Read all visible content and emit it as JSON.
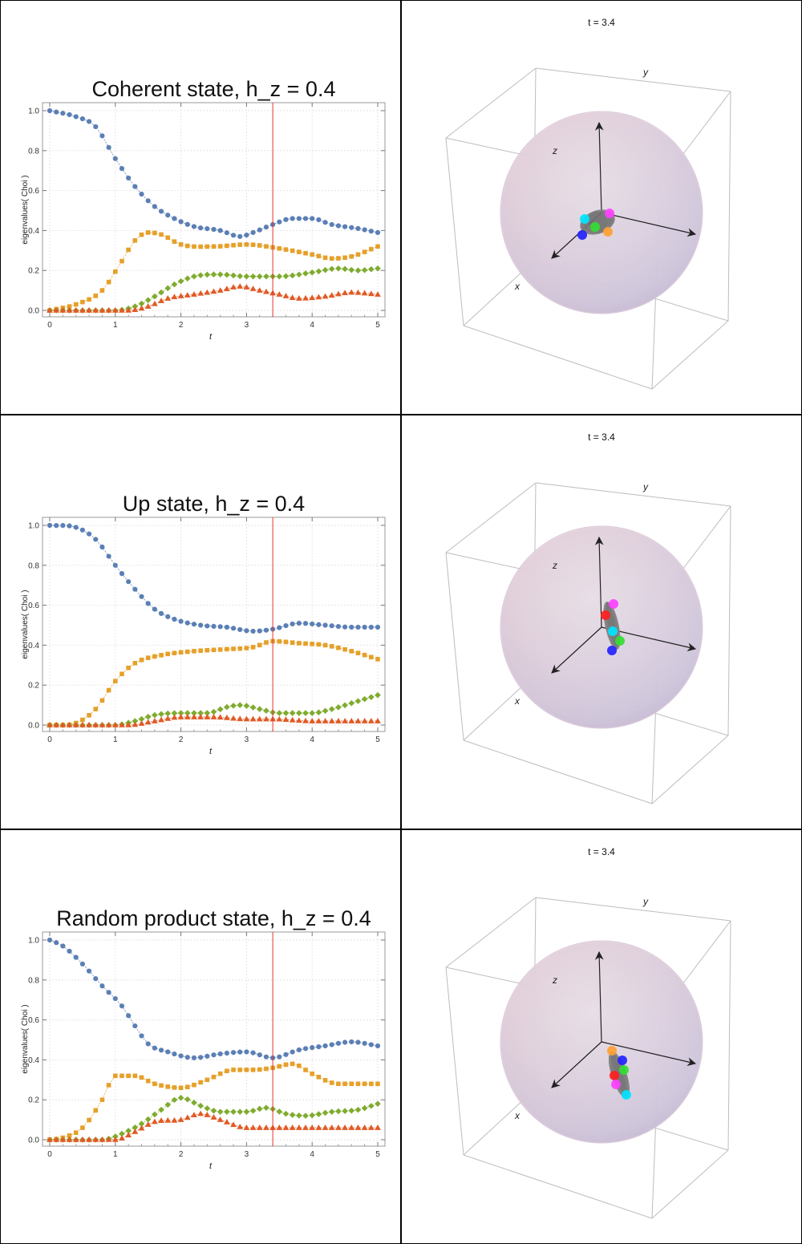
{
  "chart_data": [
    {
      "type": "scatter",
      "title": "Coherent state, h_z = 0.4",
      "xlabel": "t",
      "ylabel": "eigenvalues( Choi )",
      "xlim": [
        0,
        5
      ],
      "ylim": [
        0,
        1.0
      ],
      "xticks": [
        "0",
        "1",
        "2",
        "3",
        "4",
        "5"
      ],
      "yticks": [
        "0.0",
        "0.2",
        "0.4",
        "0.6",
        "0.8",
        "1.0"
      ],
      "marker_t": 3.4,
      "grid": true,
      "keypoints": true,
      "series": [
        {
          "color": "#5b7fb5",
          "marker": "circle",
          "points": [
            [
              0,
              1.0
            ],
            [
              0.4,
              0.97
            ],
            [
              0.7,
              0.92
            ],
            [
              1.0,
              0.76
            ],
            [
              1.3,
              0.62
            ],
            [
              1.6,
              0.52
            ],
            [
              1.9,
              0.46
            ],
            [
              2.2,
              0.42
            ],
            [
              2.6,
              0.4
            ],
            [
              2.9,
              0.37
            ],
            [
              3.1,
              0.39
            ],
            [
              3.4,
              0.43
            ],
            [
              3.7,
              0.46
            ],
            [
              4.0,
              0.46
            ],
            [
              4.3,
              0.43
            ],
            [
              4.7,
              0.41
            ],
            [
              5.0,
              0.39
            ]
          ]
        },
        {
          "color": "#e5a02a",
          "marker": "square",
          "points": [
            [
              0,
              0.0
            ],
            [
              0.4,
              0.03
            ],
            [
              0.8,
              0.1
            ],
            [
              1.05,
              0.22
            ],
            [
              1.3,
              0.35
            ],
            [
              1.5,
              0.39
            ],
            [
              1.7,
              0.38
            ],
            [
              2.0,
              0.33
            ],
            [
              2.5,
              0.32
            ],
            [
              3.0,
              0.33
            ],
            [
              3.5,
              0.31
            ],
            [
              4.0,
              0.28
            ],
            [
              4.3,
              0.26
            ],
            [
              4.6,
              0.27
            ],
            [
              5.0,
              0.32
            ]
          ]
        },
        {
          "color": "#7fab2e",
          "marker": "diamond",
          "points": [
            [
              0,
              0.0
            ],
            [
              1.0,
              0.0
            ],
            [
              1.3,
              0.02
            ],
            [
              1.6,
              0.07
            ],
            [
              1.9,
              0.13
            ],
            [
              2.2,
              0.17
            ],
            [
              2.6,
              0.18
            ],
            [
              3.0,
              0.17
            ],
            [
              3.5,
              0.17
            ],
            [
              4.0,
              0.19
            ],
            [
              4.4,
              0.21
            ],
            [
              4.7,
              0.2
            ],
            [
              5.0,
              0.21
            ]
          ]
        },
        {
          "color": "#e05a25",
          "marker": "triangle",
          "points": [
            [
              0,
              0.0
            ],
            [
              1.2,
              0.0
            ],
            [
              1.5,
              0.02
            ],
            [
              1.8,
              0.06
            ],
            [
              2.2,
              0.08
            ],
            [
              2.6,
              0.1
            ],
            [
              2.9,
              0.12
            ],
            [
              3.2,
              0.1
            ],
            [
              3.5,
              0.08
            ],
            [
              3.8,
              0.06
            ],
            [
              4.2,
              0.07
            ],
            [
              4.6,
              0.09
            ],
            [
              5.0,
              0.08
            ]
          ]
        }
      ]
    },
    {
      "type": "scatter",
      "title": "Up state, h_z = 0.4",
      "xlabel": "t",
      "ylabel": "eigenvalues( Choi )",
      "xlim": [
        0,
        5
      ],
      "ylim": [
        0,
        1.0
      ],
      "xticks": [
        "0",
        "1",
        "2",
        "3",
        "4",
        "5"
      ],
      "yticks": [
        "0.0",
        "0.2",
        "0.4",
        "0.6",
        "0.8",
        "1.0"
      ],
      "marker_t": 3.4,
      "grid": true,
      "keypoints": true,
      "series": [
        {
          "color": "#5b7fb5",
          "marker": "circle",
          "points": [
            [
              0,
              1.0
            ],
            [
              0.4,
              0.99
            ],
            [
              0.7,
              0.93
            ],
            [
              1.0,
              0.8
            ],
            [
              1.3,
              0.68
            ],
            [
              1.6,
              0.58
            ],
            [
              1.9,
              0.53
            ],
            [
              2.3,
              0.5
            ],
            [
              2.7,
              0.49
            ],
            [
              3.1,
              0.47
            ],
            [
              3.4,
              0.48
            ],
            [
              3.8,
              0.51
            ],
            [
              4.2,
              0.5
            ],
            [
              4.6,
              0.49
            ],
            [
              5.0,
              0.49
            ]
          ]
        },
        {
          "color": "#e5a02a",
          "marker": "square",
          "points": [
            [
              0,
              0.0
            ],
            [
              0.4,
              0.01
            ],
            [
              0.7,
              0.08
            ],
            [
              1.0,
              0.22
            ],
            [
              1.3,
              0.31
            ],
            [
              1.7,
              0.35
            ],
            [
              2.2,
              0.37
            ],
            [
              2.7,
              0.38
            ],
            [
              3.1,
              0.39
            ],
            [
              3.4,
              0.42
            ],
            [
              3.8,
              0.41
            ],
            [
              4.2,
              0.4
            ],
            [
              4.6,
              0.37
            ],
            [
              5.0,
              0.33
            ]
          ]
        },
        {
          "color": "#7fab2e",
          "marker": "diamond",
          "points": [
            [
              0,
              0.0
            ],
            [
              1.0,
              0.0
            ],
            [
              1.3,
              0.02
            ],
            [
              1.6,
              0.05
            ],
            [
              2.0,
              0.06
            ],
            [
              2.4,
              0.06
            ],
            [
              2.7,
              0.09
            ],
            [
              2.9,
              0.1
            ],
            [
              3.2,
              0.08
            ],
            [
              3.5,
              0.06
            ],
            [
              4.0,
              0.06
            ],
            [
              4.3,
              0.08
            ],
            [
              4.7,
              0.12
            ],
            [
              5.0,
              0.15
            ]
          ]
        },
        {
          "color": "#e05a25",
          "marker": "triangle",
          "points": [
            [
              0,
              0.0
            ],
            [
              1.2,
              0.0
            ],
            [
              1.6,
              0.02
            ],
            [
              2.0,
              0.04
            ],
            [
              2.5,
              0.04
            ],
            [
              3.0,
              0.03
            ],
            [
              3.4,
              0.03
            ],
            [
              4.0,
              0.02
            ],
            [
              4.5,
              0.02
            ],
            [
              5.0,
              0.02
            ]
          ]
        }
      ]
    },
    {
      "type": "scatter",
      "title": "Random product state, h_z = 0.4",
      "xlabel": "t",
      "ylabel": "eigenvalues( Choi )",
      "xlim": [
        0,
        5
      ],
      "ylim": [
        0,
        1.0
      ],
      "xticks": [
        "0",
        "1",
        "2",
        "3",
        "4",
        "5"
      ],
      "yticks": [
        "0.0",
        "0.2",
        "0.4",
        "0.6",
        "0.8",
        "1.0"
      ],
      "marker_t": 3.4,
      "grid": true,
      "keypoints": true,
      "series": [
        {
          "color": "#5b7fb5",
          "marker": "circle",
          "points": [
            [
              0,
              1.0
            ],
            [
              0.2,
              0.97
            ],
            [
              0.5,
              0.88
            ],
            [
              0.8,
              0.77
            ],
            [
              1.1,
              0.67
            ],
            [
              1.3,
              0.57
            ],
            [
              1.5,
              0.48
            ],
            [
              1.8,
              0.44
            ],
            [
              2.2,
              0.41
            ],
            [
              2.6,
              0.43
            ],
            [
              3.0,
              0.44
            ],
            [
              3.4,
              0.41
            ],
            [
              3.8,
              0.45
            ],
            [
              4.2,
              0.47
            ],
            [
              4.6,
              0.49
            ],
            [
              5.0,
              0.47
            ]
          ]
        },
        {
          "color": "#e5a02a",
          "marker": "square",
          "points": [
            [
              0,
              0.0
            ],
            [
              0.2,
              0.01
            ],
            [
              0.5,
              0.06
            ],
            [
              0.8,
              0.2
            ],
            [
              1.0,
              0.32
            ],
            [
              1.3,
              0.32
            ],
            [
              1.6,
              0.28
            ],
            [
              2.0,
              0.26
            ],
            [
              2.4,
              0.3
            ],
            [
              2.8,
              0.35
            ],
            [
              3.1,
              0.35
            ],
            [
              3.4,
              0.36
            ],
            [
              3.7,
              0.38
            ],
            [
              4.0,
              0.33
            ],
            [
              4.4,
              0.28
            ],
            [
              5.0,
              0.28
            ]
          ]
        },
        {
          "color": "#7fab2e",
          "marker": "diamond",
          "points": [
            [
              0,
              0.0
            ],
            [
              0.8,
              0.0
            ],
            [
              1.1,
              0.03
            ],
            [
              1.4,
              0.08
            ],
            [
              1.7,
              0.15
            ],
            [
              2.0,
              0.21
            ],
            [
              2.3,
              0.17
            ],
            [
              2.6,
              0.14
            ],
            [
              3.0,
              0.14
            ],
            [
              3.3,
              0.16
            ],
            [
              3.6,
              0.13
            ],
            [
              3.9,
              0.12
            ],
            [
              4.3,
              0.14
            ],
            [
              4.7,
              0.15
            ],
            [
              5.0,
              0.18
            ]
          ]
        },
        {
          "color": "#e05a25",
          "marker": "triangle",
          "points": [
            [
              0,
              0.0
            ],
            [
              1.0,
              0.0
            ],
            [
              1.3,
              0.04
            ],
            [
              1.6,
              0.09
            ],
            [
              2.0,
              0.1
            ],
            [
              2.3,
              0.13
            ],
            [
              2.6,
              0.1
            ],
            [
              3.0,
              0.06
            ],
            [
              3.4,
              0.06
            ],
            [
              4.0,
              0.06
            ],
            [
              4.5,
              0.06
            ],
            [
              5.0,
              0.06
            ]
          ]
        }
      ]
    }
  ],
  "bloch_panels": [
    {
      "time_label": "t = 3.4",
      "axes": {
        "x": "x",
        "y": "y",
        "z": "z"
      },
      "orientation": "tilted",
      "dots": [
        "#00e5ff",
        "#ff40ff",
        "#2222ff",
        "#ffa033",
        "#33dd33"
      ]
    },
    {
      "time_label": "t = 3.4",
      "axes": {
        "x": "x",
        "y": "y",
        "z": "z"
      },
      "orientation": "vertical",
      "dots": [
        "#ff40ff",
        "#ff2020",
        "#00e5ff",
        "#33dd33",
        "#2222ff"
      ]
    },
    {
      "time_label": "t = 3.4",
      "axes": {
        "x": "x",
        "y": "y",
        "z": "z"
      },
      "orientation": "steep",
      "dots": [
        "#ffa033",
        "#2222ff",
        "#33dd33",
        "#ff2020",
        "#ff40ff",
        "#00e5ff"
      ]
    }
  ]
}
